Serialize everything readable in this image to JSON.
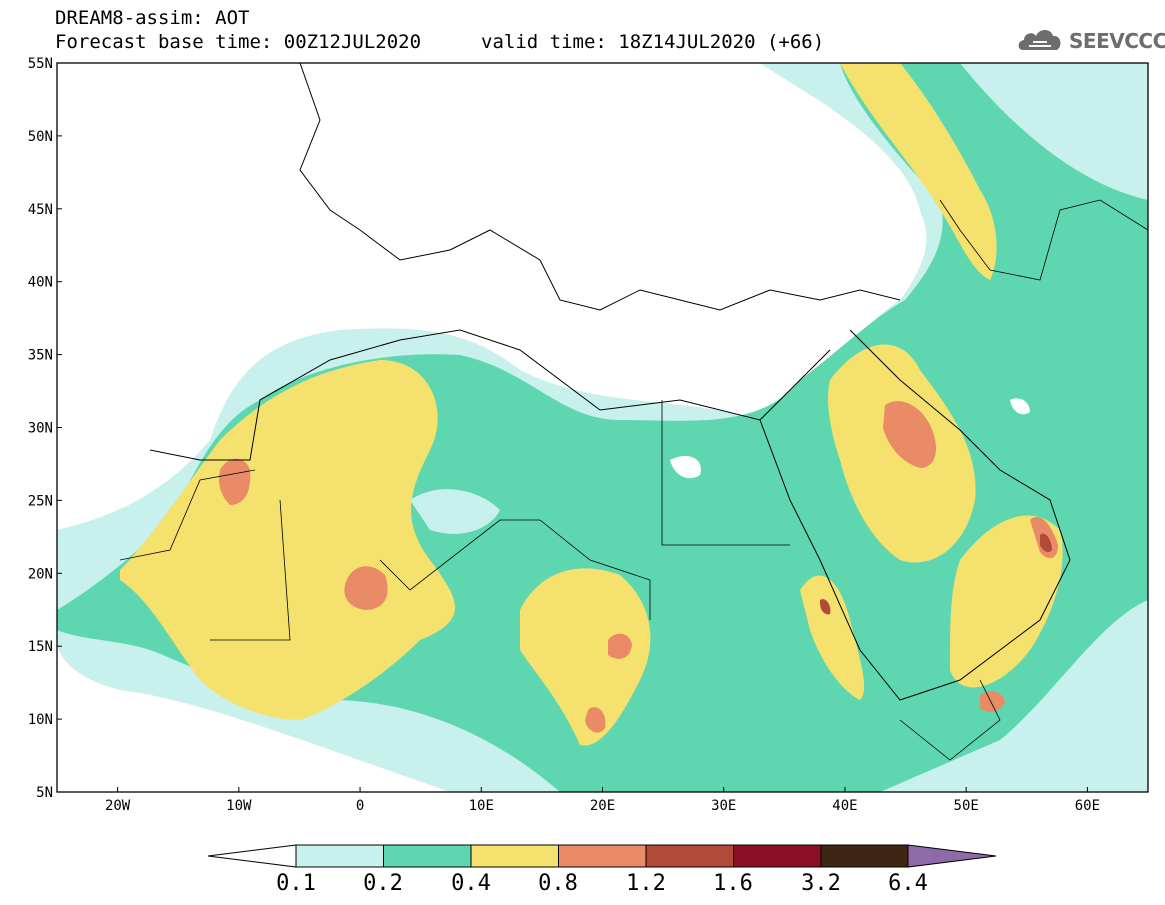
{
  "title": {
    "line1": "DREAM8-assim: AOT",
    "base_time": "Forecast base time: 00Z12JUL2020",
    "valid_time": "valid time: 18Z14JUL2020 (+66)"
  },
  "logo": {
    "text": "SEEVCCC",
    "icon": "cloud-icon"
  },
  "map": {
    "lon_range": [
      -25,
      65
    ],
    "lat_range": [
      5,
      55
    ],
    "lat_labels": [
      "55N",
      "50N",
      "45N",
      "40N",
      "35N",
      "30N",
      "25N",
      "20N",
      "15N",
      "10N",
      "5N"
    ],
    "lon_labels": [
      "20W",
      "10W",
      "0",
      "10E",
      "20E",
      "30E",
      "40E",
      "50E",
      "60E"
    ],
    "field_colors": {
      "0.1": "#c8f0ec",
      "0.2": "#5ed7b0",
      "0.4": "#f5e26e",
      "0.8": "#e98b67",
      "1.2": "#b24a3a"
    }
  },
  "colorbar": {
    "labels": [
      "0.1",
      "0.2",
      "0.4",
      "0.8",
      "1.2",
      "1.6",
      "3.2",
      "6.4"
    ],
    "colors": [
      "#c8f0ec",
      "#5ed7b0",
      "#f5e26e",
      "#e98b67",
      "#b24a3a",
      "#8b0f24",
      "#3e2614"
    ],
    "under_color": "#ffffff",
    "over_color": "#8f6aa8"
  }
}
